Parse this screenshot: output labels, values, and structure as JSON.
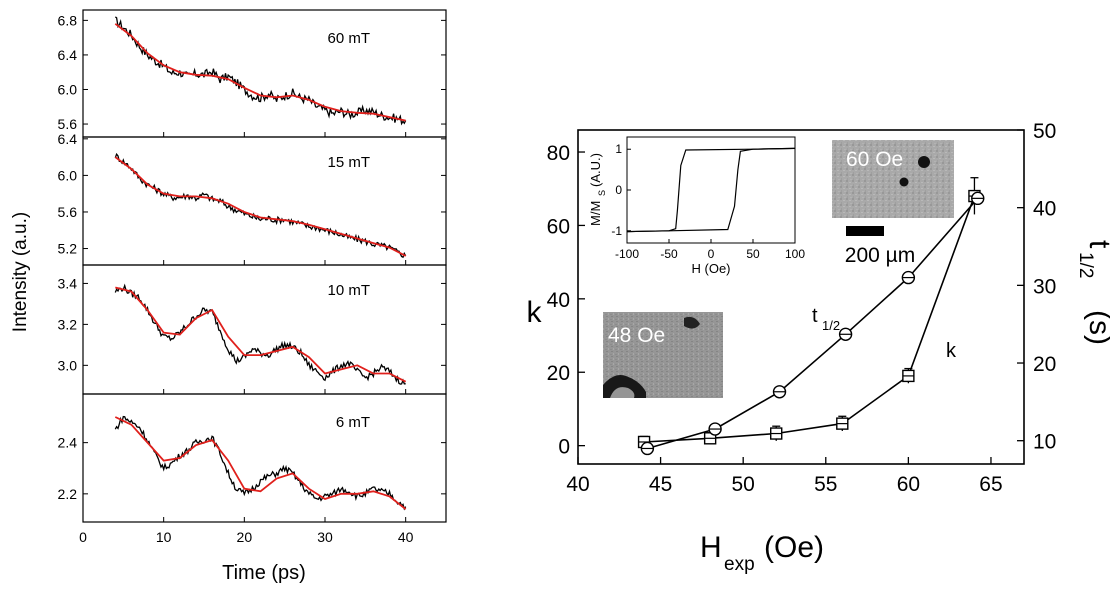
{
  "chart_data": [
    {
      "type": "line",
      "panel": "top",
      "annotation": "60 mT",
      "xlim": [
        0,
        45
      ],
      "ylim": [
        5.45,
        6.92
      ],
      "yticks": [
        "5.6",
        "6.0",
        "6.4",
        "6.8"
      ],
      "ytick_values": [
        5.6,
        6.0,
        6.4,
        6.8
      ],
      "series": [
        {
          "role": "data",
          "color": "#000000",
          "x": [
            4,
            5,
            6,
            7,
            8,
            9,
            10,
            11,
            12,
            13,
            14,
            15,
            16,
            17,
            18,
            19,
            20,
            21,
            22,
            23,
            24,
            25,
            26,
            27,
            28,
            29,
            30,
            31,
            32,
            33,
            34,
            35,
            36,
            37,
            38,
            39,
            40
          ],
          "y": [
            6.8,
            6.72,
            6.63,
            6.5,
            6.4,
            6.33,
            6.27,
            6.19,
            6.2,
            6.15,
            6.18,
            6.17,
            6.21,
            6.12,
            6.15,
            6.08,
            6.0,
            5.93,
            5.9,
            5.95,
            5.88,
            5.93,
            5.96,
            5.9,
            5.88,
            5.8,
            5.76,
            5.72,
            5.75,
            5.71,
            5.73,
            5.76,
            5.74,
            5.7,
            5.68,
            5.66,
            5.64
          ]
        },
        {
          "role": "fit",
          "color": "#e0201c",
          "x": [
            4,
            6,
            8,
            10,
            12,
            14,
            16,
            18,
            20,
            22,
            24,
            26,
            28,
            30,
            32,
            34,
            36,
            38,
            40
          ],
          "y": [
            6.76,
            6.62,
            6.42,
            6.28,
            6.2,
            6.17,
            6.16,
            6.12,
            6.02,
            5.93,
            5.91,
            5.93,
            5.88,
            5.8,
            5.75,
            5.73,
            5.72,
            5.68,
            5.64
          ]
        }
      ]
    },
    {
      "type": "line",
      "panel": "second",
      "annotation": "15 mT",
      "xlim": [
        0,
        45
      ],
      "ylim": [
        5.02,
        6.42
      ],
      "yticks": [
        "5.2",
        "5.6",
        "6.0",
        "6.4"
      ],
      "ytick_values": [
        5.2,
        5.6,
        6.0,
        6.4
      ],
      "series": [
        {
          "role": "data",
          "color": "#000000",
          "x": [
            4,
            5,
            6,
            7,
            8,
            9,
            10,
            11,
            12,
            13,
            14,
            15,
            16,
            17,
            18,
            19,
            20,
            21,
            22,
            23,
            24,
            25,
            26,
            27,
            28,
            29,
            30,
            31,
            32,
            33,
            34,
            35,
            36,
            37,
            38,
            39,
            40
          ],
          "y": [
            6.22,
            6.15,
            6.08,
            5.97,
            5.9,
            5.85,
            5.8,
            5.76,
            5.76,
            5.78,
            5.75,
            5.79,
            5.74,
            5.72,
            5.66,
            5.62,
            5.58,
            5.55,
            5.52,
            5.53,
            5.51,
            5.52,
            5.49,
            5.47,
            5.44,
            5.43,
            5.4,
            5.38,
            5.35,
            5.32,
            5.3,
            5.28,
            5.25,
            5.23,
            5.21,
            5.16,
            5.12
          ]
        },
        {
          "role": "fit",
          "color": "#e0201c",
          "x": [
            4,
            6,
            8,
            10,
            12,
            14,
            16,
            18,
            20,
            22,
            24,
            26,
            28,
            30,
            32,
            34,
            36,
            38,
            40
          ],
          "y": [
            6.2,
            6.07,
            5.9,
            5.8,
            5.77,
            5.77,
            5.75,
            5.69,
            5.6,
            5.54,
            5.52,
            5.5,
            5.46,
            5.41,
            5.36,
            5.31,
            5.26,
            5.21,
            5.12
          ]
        }
      ]
    },
    {
      "type": "line",
      "panel": "third",
      "annotation": "10 mT",
      "xlim": [
        0,
        45
      ],
      "ylim": [
        2.86,
        3.49
      ],
      "yticks": [
        "3.0",
        "3.2",
        "3.4"
      ],
      "ytick_values": [
        3.0,
        3.2,
        3.4
      ],
      "series": [
        {
          "role": "data",
          "color": "#000000",
          "x": [
            4,
            5,
            6,
            7,
            8,
            9,
            10,
            11,
            12,
            13,
            14,
            15,
            16,
            17,
            18,
            19,
            20,
            21,
            22,
            23,
            24,
            25,
            26,
            27,
            28,
            29,
            30,
            31,
            32,
            33,
            34,
            35,
            36,
            37,
            38,
            39,
            40
          ],
          "y": [
            3.36,
            3.38,
            3.35,
            3.33,
            3.27,
            3.2,
            3.14,
            3.13,
            3.16,
            3.2,
            3.24,
            3.27,
            3.26,
            3.17,
            3.08,
            3.02,
            3.04,
            3.08,
            3.06,
            3.05,
            3.08,
            3.1,
            3.09,
            3.06,
            3.0,
            2.97,
            2.94,
            2.97,
            3.0,
            3.01,
            2.97,
            2.94,
            2.96,
            2.99,
            2.97,
            2.93,
            2.91
          ]
        },
        {
          "role": "fit",
          "color": "#e0201c",
          "x": [
            4,
            6,
            8,
            10,
            12,
            14,
            16,
            18,
            20,
            22,
            24,
            26,
            28,
            30,
            32,
            34,
            36,
            38,
            40
          ],
          "y": [
            3.38,
            3.36,
            3.27,
            3.16,
            3.15,
            3.23,
            3.27,
            3.14,
            3.05,
            3.05,
            3.07,
            3.09,
            3.04,
            2.96,
            2.98,
            3.0,
            2.96,
            2.96,
            2.92
          ]
        }
      ]
    },
    {
      "type": "line",
      "panel": "bottom",
      "annotation": "6 mT",
      "xlim": [
        0,
        45
      ],
      "ylim": [
        2.09,
        2.59
      ],
      "yticks": [
        "2.2",
        "2.4"
      ],
      "ytick_values": [
        2.2,
        2.4
      ],
      "xticks": [
        "0",
        "10",
        "20",
        "30",
        "40"
      ],
      "xtick_values": [
        0,
        10,
        20,
        30,
        40
      ],
      "xlabel": "Time (ps)",
      "series": [
        {
          "role": "data",
          "color": "#000000",
          "x": [
            4,
            5,
            6,
            7,
            8,
            9,
            10,
            11,
            12,
            13,
            14,
            15,
            16,
            17,
            18,
            19,
            20,
            21,
            22,
            23,
            24,
            25,
            26,
            27,
            28,
            29,
            30,
            31,
            32,
            33,
            34,
            35,
            36,
            37,
            38,
            39,
            40
          ],
          "y": [
            2.45,
            2.5,
            2.48,
            2.46,
            2.41,
            2.35,
            2.3,
            2.32,
            2.35,
            2.37,
            2.4,
            2.41,
            2.42,
            2.36,
            2.28,
            2.22,
            2.2,
            2.22,
            2.25,
            2.27,
            2.28,
            2.3,
            2.28,
            2.24,
            2.2,
            2.18,
            2.19,
            2.2,
            2.22,
            2.21,
            2.19,
            2.2,
            2.22,
            2.21,
            2.2,
            2.17,
            2.15
          ]
        },
        {
          "role": "fit",
          "color": "#e0201c",
          "x": [
            4,
            6,
            8,
            10,
            12,
            14,
            16,
            18,
            20,
            22,
            24,
            26,
            28,
            30,
            32,
            34,
            36,
            38,
            40
          ],
          "y": [
            2.5,
            2.47,
            2.4,
            2.33,
            2.34,
            2.39,
            2.41,
            2.33,
            2.22,
            2.21,
            2.26,
            2.28,
            2.22,
            2.18,
            2.2,
            2.2,
            2.21,
            2.19,
            2.14
          ]
        }
      ]
    },
    {
      "type": "scatter",
      "panel": "right",
      "xlabel_main": "H",
      "xlabel_sub": "exp",
      "xlabel_unit": "(Oe)",
      "ylabel": "k",
      "ylabel_right_main": "t",
      "ylabel_right_sub": "1/2",
      "ylabel_right_unit": "(s)",
      "xlim": [
        40,
        67
      ],
      "ylim": [
        -5,
        86
      ],
      "y2lim": [
        7,
        50
      ],
      "xticks": [
        "40",
        "45",
        "50",
        "55",
        "60",
        "65"
      ],
      "xtick_values": [
        40,
        45,
        50,
        55,
        60,
        65
      ],
      "yticks": [
        "0",
        "20",
        "40",
        "60",
        "80"
      ],
      "ytick_values": [
        0,
        20,
        40,
        60,
        80
      ],
      "y2ticks": [
        "10",
        "20",
        "30",
        "40",
        "50"
      ],
      "y2tick_values": [
        10,
        20,
        30,
        40,
        50
      ],
      "series": [
        {
          "name": "k",
          "marker": "square",
          "axis": "left",
          "x": [
            44,
            48,
            52,
            56,
            60,
            64
          ],
          "y": [
            1,
            2,
            3.3,
            6,
            19,
            68
          ],
          "yerr": [
            1.5,
            1.5,
            2,
            2,
            2,
            5
          ]
        },
        {
          "name": "t",
          "name_sub": "1/2",
          "marker": "circle",
          "axis": "right",
          "x": [
            44.2,
            48.3,
            52.2,
            56.2,
            60,
            64.2
          ],
          "y": [
            9,
            11.5,
            16.3,
            23.7,
            31,
            41.2
          ]
        }
      ],
      "image_labels": {
        "high": "60 Oe",
        "low": "48 Oe",
        "scale_bar": "200 µm"
      },
      "inset": {
        "type": "line",
        "xlabel": "H (Oe)",
        "ylabel_main": "M/M",
        "ylabel_sub": "S",
        "ylabel_unit": "(A.U.)",
        "xlim": [
          -100,
          100
        ],
        "ylim": [
          -1.3,
          1.3
        ],
        "xticks": [
          "-100",
          "-50",
          "0",
          "50",
          "100"
        ],
        "xtick_values": [
          -100,
          -50,
          0,
          50,
          100
        ],
        "yticks": [
          "-1",
          "0",
          "1"
        ],
        "ytick_values": [
          -1,
          0,
          1
        ],
        "series": [
          {
            "branch": "descending",
            "x": [
              100,
              50,
              -30,
              -36,
              -40,
              -42,
              -50,
              -100
            ],
            "y": [
              1.02,
              1.0,
              0.98,
              0.6,
              -0.5,
              -0.95,
              -1.0,
              -1.02
            ]
          },
          {
            "branch": "ascending",
            "x": [
              -100,
              -50,
              20,
              28,
              32,
              35,
              50,
              100
            ],
            "y": [
              -1.02,
              -1.0,
              -0.97,
              -0.4,
              0.5,
              0.95,
              1.0,
              1.02
            ]
          }
        ]
      }
    }
  ]
}
